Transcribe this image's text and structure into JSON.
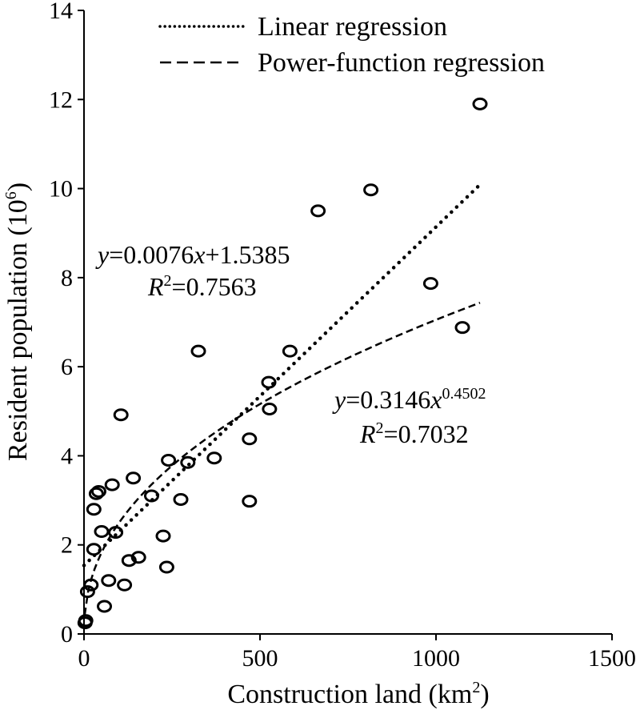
{
  "chart_data": {
    "type": "scatter",
    "xlabel": "Construction land (km",
    "xlabel_sup": "2",
    "xlabel_tail": ")",
    "ylabel": "Resident population (10",
    "ylabel_sup": "6",
    "ylabel_tail": ")",
    "xlim": [
      0,
      1500
    ],
    "ylim": [
      0,
      14
    ],
    "x_ticks": [
      0,
      500,
      1000,
      1500
    ],
    "y_ticks": [
      0,
      2,
      4,
      6,
      8,
      10,
      12,
      14
    ],
    "legend": {
      "placement": "top-center",
      "entries": [
        {
          "label": "Linear regression",
          "style": "dotted"
        },
        {
          "label": "Power-function regression",
          "style": "dashed"
        }
      ]
    },
    "points": [
      {
        "x": 5,
        "y": 0.3
      },
      {
        "x": 3,
        "y": 0.25
      },
      {
        "x": 10,
        "y": 0.95
      },
      {
        "x": 20,
        "y": 1.1
      },
      {
        "x": 28,
        "y": 1.9
      },
      {
        "x": 28,
        "y": 2.8
      },
      {
        "x": 35,
        "y": 3.15
      },
      {
        "x": 42,
        "y": 3.2
      },
      {
        "x": 80,
        "y": 3.35
      },
      {
        "x": 50,
        "y": 2.3
      },
      {
        "x": 90,
        "y": 2.28
      },
      {
        "x": 58,
        "y": 0.62
      },
      {
        "x": 70,
        "y": 1.2
      },
      {
        "x": 115,
        "y": 1.1
      },
      {
        "x": 128,
        "y": 1.65
      },
      {
        "x": 155,
        "y": 1.72
      },
      {
        "x": 140,
        "y": 3.5
      },
      {
        "x": 105,
        "y": 4.92
      },
      {
        "x": 192,
        "y": 3.1
      },
      {
        "x": 225,
        "y": 2.2
      },
      {
        "x": 235,
        "y": 1.5
      },
      {
        "x": 240,
        "y": 3.9
      },
      {
        "x": 275,
        "y": 3.02
      },
      {
        "x": 295,
        "y": 3.85
      },
      {
        "x": 325,
        "y": 6.35
      },
      {
        "x": 370,
        "y": 3.95
      },
      {
        "x": 470,
        "y": 4.38
      },
      {
        "x": 470,
        "y": 2.98
      },
      {
        "x": 525,
        "y": 5.65
      },
      {
        "x": 527,
        "y": 5.05
      },
      {
        "x": 585,
        "y": 6.35
      },
      {
        "x": 665,
        "y": 9.5
      },
      {
        "x": 815,
        "y": 9.97
      },
      {
        "x": 985,
        "y": 7.87
      },
      {
        "x": 1075,
        "y": 6.88
      },
      {
        "x": 1125,
        "y": 11.9
      }
    ],
    "fits": [
      {
        "kind": "linear",
        "slope": 0.0076,
        "intercept": 1.5385,
        "x_range": [
          0,
          1125
        ],
        "equation_y": "y",
        "equation_rest": "=0.0076",
        "equation_x": "x",
        "equation_tail": "+1.5385",
        "r2_label": "R",
        "r2_sup": "2",
        "r2_value": "=0.7563"
      },
      {
        "kind": "power",
        "a": 0.3146,
        "b": 0.4502,
        "x_range": [
          2,
          1125
        ],
        "equation_y": "y",
        "equation_rest": "=0.3146",
        "equation_x": "x",
        "equation_exp": "0.4502",
        "r2_label": "R",
        "r2_sup": "2",
        "r2_value": "=0.7032"
      }
    ]
  }
}
